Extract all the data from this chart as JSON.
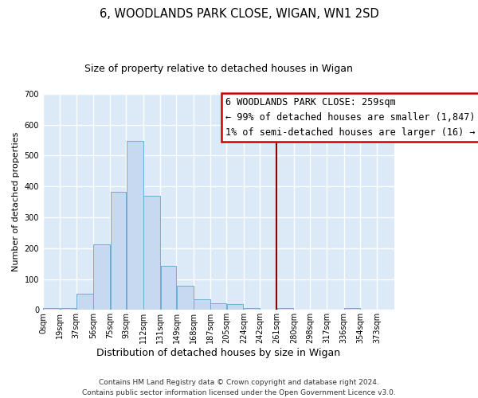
{
  "title": "6, WOODLANDS PARK CLOSE, WIGAN, WN1 2SD",
  "subtitle": "Size of property relative to detached houses in Wigan",
  "xlabel": "Distribution of detached houses by size in Wigan",
  "ylabel": "Number of detached properties",
  "bar_color": "#c6d9f0",
  "bar_edge_color": "#6baed6",
  "background_color": "#dce9f7",
  "grid_color": "#ffffff",
  "vline_value": 261,
  "vline_color": "#8b0000",
  "bin_edges": [
    0,
    19,
    37,
    56,
    75,
    93,
    112,
    131,
    149,
    168,
    187,
    205,
    224,
    242,
    261,
    280,
    298,
    317,
    336,
    354,
    373,
    392
  ],
  "bin_labels": [
    "0sqm",
    "19sqm",
    "37sqm",
    "56sqm",
    "75sqm",
    "93sqm",
    "112sqm",
    "131sqm",
    "149sqm",
    "168sqm",
    "187sqm",
    "205sqm",
    "224sqm",
    "242sqm",
    "261sqm",
    "280sqm",
    "298sqm",
    "317sqm",
    "336sqm",
    "354sqm",
    "373sqm"
  ],
  "bar_heights": [
    5,
    5,
    52,
    213,
    382,
    547,
    370,
    142,
    77,
    33,
    22,
    18,
    5,
    2,
    5,
    1,
    0,
    0,
    5,
    1,
    1
  ],
  "ylim": [
    0,
    700
  ],
  "yticks": [
    0,
    100,
    200,
    300,
    400,
    500,
    600,
    700
  ],
  "annotation_lines": [
    "6 WOODLANDS PARK CLOSE: 259sqm",
    "← 99% of detached houses are smaller (1,847)",
    "1% of semi-detached houses are larger (16) →"
  ],
  "footer_text": "Contains HM Land Registry data © Crown copyright and database right 2024.\nContains public sector information licensed under the Open Government Licence v3.0.",
  "title_fontsize": 10.5,
  "subtitle_fontsize": 9,
  "xlabel_fontsize": 9,
  "ylabel_fontsize": 8,
  "tick_fontsize": 7,
  "annotation_fontsize": 8.5,
  "footer_fontsize": 6.5
}
